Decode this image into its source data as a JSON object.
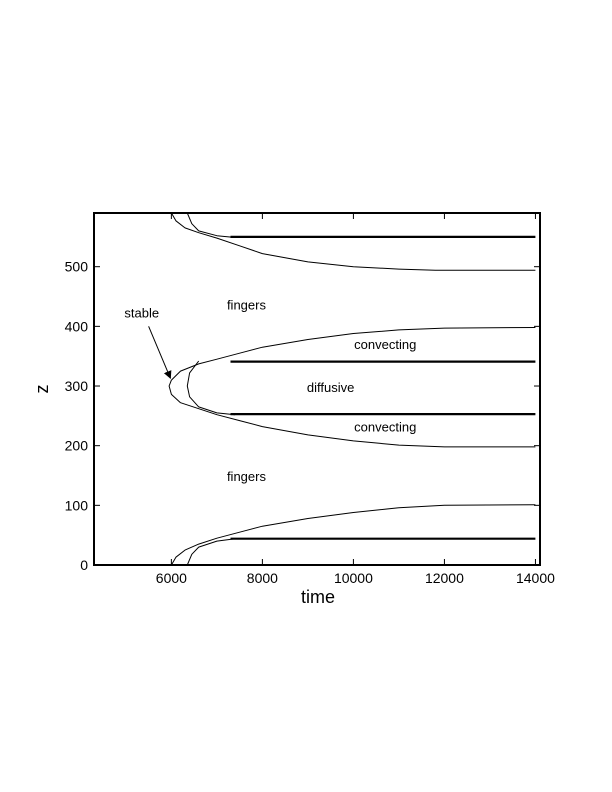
{
  "chart_data": {
    "type": "line",
    "xlabel": "time",
    "ylabel": "z",
    "xlim": [
      4300,
      14100
    ],
    "ylim": [
      0,
      590
    ],
    "xticks": [
      "6000",
      "8000",
      "10000",
      "12000",
      "14000"
    ],
    "xtick_values": [
      6000,
      8000,
      10000,
      12000,
      14000
    ],
    "yticks": [
      "0",
      "100",
      "200",
      "300",
      "400",
      "500"
    ],
    "ytick_values": [
      0,
      100,
      200,
      300,
      400,
      500
    ],
    "grid": false,
    "series": [
      {
        "style": "thin",
        "x": [
          6000,
          6100,
          6300,
          6600,
          7000,
          7500,
          8000,
          9000,
          10000,
          11000,
          11800,
          12500,
          14000
        ],
        "y": [
          590,
          577,
          565,
          557,
          548,
          535,
          522,
          508,
          500,
          496,
          494,
          494,
          494
        ]
      },
      {
        "style": "thin",
        "x": [
          6350,
          6450,
          6600,
          7000,
          7400
        ],
        "y": [
          590,
          572,
          560,
          552,
          549
        ]
      },
      {
        "style": "thick",
        "x": [
          7300,
          14000
        ],
        "y": [
          550,
          550
        ]
      },
      {
        "style": "thin",
        "x": [
          6000,
          6200,
          6600,
          7000,
          7500,
          8000,
          9000,
          10000,
          11000,
          12000,
          14000
        ],
        "y": [
          310,
          325,
          337,
          345,
          355,
          365,
          378,
          388,
          394,
          397,
          398
        ]
      },
      {
        "style": "thin",
        "x": [
          6000,
          5950,
          6000,
          6200,
          6600,
          7000,
          7500,
          8000,
          9000,
          10000,
          11000,
          12000,
          14000
        ],
        "y": [
          310,
          300,
          286,
          272,
          262,
          252,
          242,
          232,
          218,
          208,
          201,
          198,
          198
        ]
      },
      {
        "style": "thin",
        "x": [
          6600,
          6400,
          6350,
          6400,
          6600,
          7000,
          7400
        ],
        "y": [
          342,
          322,
          300,
          282,
          265,
          255,
          252
        ]
      },
      {
        "style": "thick",
        "x": [
          7300,
          14000
        ],
        "y": [
          341,
          341
        ]
      },
      {
        "style": "thick",
        "x": [
          7300,
          14000
        ],
        "y": [
          253,
          253
        ]
      },
      {
        "style": "thin",
        "x": [
          6000,
          6100,
          6300,
          6600,
          7000,
          7500,
          8000,
          9000,
          10000,
          11000,
          12000,
          14000
        ],
        "y": [
          0,
          13,
          25,
          35,
          45,
          55,
          65,
          78,
          88,
          96,
          100,
          101
        ]
      },
      {
        "style": "thin",
        "x": [
          6350,
          6450,
          6600,
          7000,
          7400
        ],
        "y": [
          0,
          18,
          30,
          40,
          44
        ]
      },
      {
        "style": "thick",
        "x": [
          7300,
          14000
        ],
        "y": [
          44,
          44
        ]
      }
    ],
    "annotations": [
      {
        "text": "fingers",
        "x": 7650,
        "y": 428
      },
      {
        "text": "stable",
        "x": 5350,
        "y": 415
      },
      {
        "text": "convecting",
        "x": 10700,
        "y": 362
      },
      {
        "text": "diffusive",
        "x": 9500,
        "y": 290
      },
      {
        "text": "convecting",
        "x": 10700,
        "y": 224
      },
      {
        "text": "fingers",
        "x": 7650,
        "y": 141
      }
    ],
    "arrow": {
      "from": [
        5500,
        400
      ],
      "to": [
        5980,
        313
      ]
    }
  }
}
